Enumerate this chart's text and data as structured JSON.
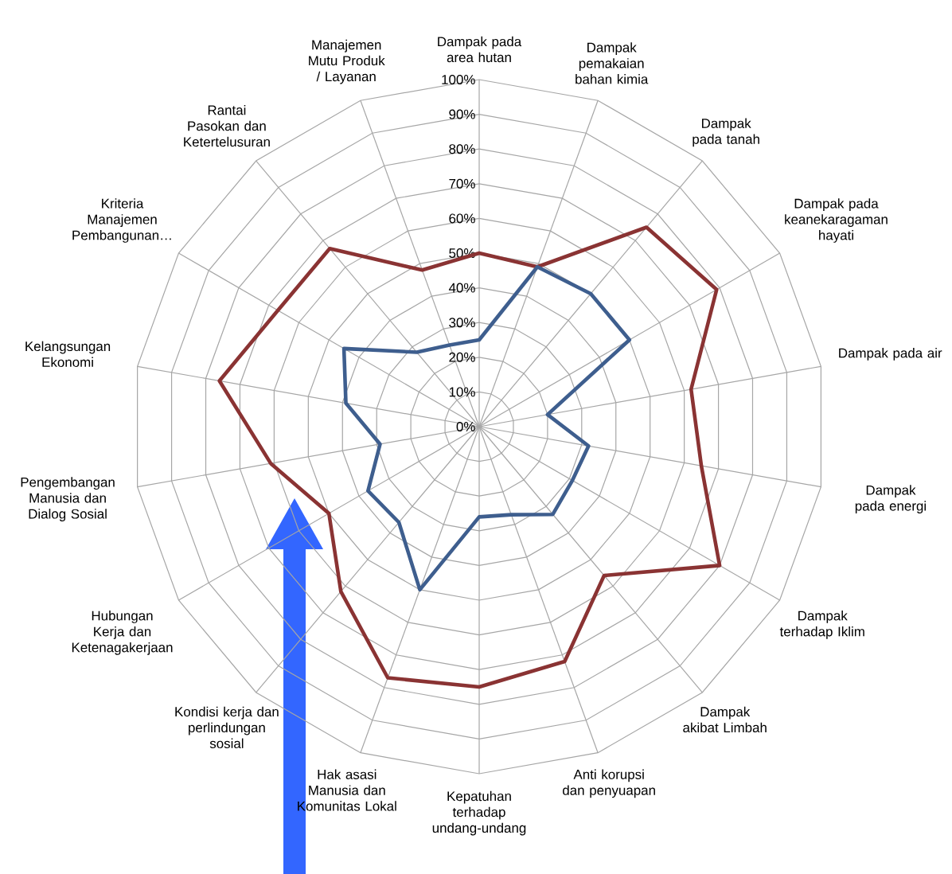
{
  "chart_data": {
    "type": "radar",
    "categories": [
      "Dampak pada area hutan",
      "Dampak pemakaian bahan kimia",
      "Dampak pada tanah",
      "Dampak pada keanekaragaman hayati",
      "Dampak pada air",
      "Dampak pada energi",
      "Dampak terhadap Iklim",
      "Dampak akibat Limbah",
      "Anti korupsi dan penyuapan",
      "Kepatuhan terhadap undang-undang",
      "Hak asasi Manusia dan Komunitas Lokal",
      "Kondisi kerja dan perlindungan sosial",
      "Hubungan Kerja dan Ketenagakerjaan",
      "Pengembangan Manusia dan Dialog Sosial",
      "Kelangsungan Ekonomi",
      "Kriteria Manajemen Pembangunan…",
      "Rantai Pasokan dan Ketertelusuran",
      "Manajemen Mutu Produk / Layanan"
    ],
    "series": [
      {
        "color": "#8a3333",
        "values": [
          50,
          49,
          75,
          79,
          62,
          65,
          80,
          56,
          72,
          75,
          77,
          62,
          50,
          61,
          76,
          67,
          67,
          48
        ]
      },
      {
        "color": "#3e5e8e",
        "values": [
          25,
          49,
          50,
          50,
          20,
          32,
          31,
          33,
          27,
          26,
          50,
          36,
          37,
          29,
          39,
          45,
          28,
          25
        ]
      }
    ],
    "ylim": [
      0,
      100
    ],
    "yticks": [
      {
        "value": 0,
        "label": "0%"
      },
      {
        "value": 10,
        "label": "10%"
      },
      {
        "value": 20,
        "label": "20%"
      },
      {
        "value": 30,
        "label": "30%"
      },
      {
        "value": 40,
        "label": "40%"
      },
      {
        "value": 50,
        "label": "50%"
      },
      {
        "value": 60,
        "label": "60%"
      },
      {
        "value": 70,
        "label": "70%"
      },
      {
        "value": 80,
        "label": "80%"
      },
      {
        "value": 90,
        "label": "90%"
      },
      {
        "value": 100,
        "label": "100%"
      }
    ],
    "grid": true
  }
}
